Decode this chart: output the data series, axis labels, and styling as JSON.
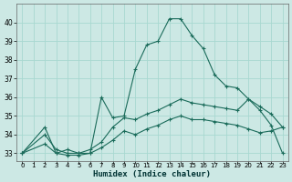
{
  "xlabel": "Humidex (Indice chaleur)",
  "bg_color": "#cce8e4",
  "grid_color": "#a8d8d0",
  "line_color": "#1a6b5a",
  "xlim": [
    -0.5,
    23.5
  ],
  "ylim": [
    32.6,
    41.0
  ],
  "xticks": [
    0,
    1,
    2,
    3,
    4,
    5,
    6,
    7,
    8,
    9,
    10,
    11,
    12,
    13,
    14,
    15,
    16,
    17,
    18,
    19,
    20,
    21,
    22,
    23
  ],
  "yticks": [
    33,
    34,
    35,
    36,
    37,
    38,
    39,
    40
  ],
  "series": [
    {
      "x": [
        0,
        2,
        3,
        4,
        5,
        6,
        7,
        8,
        9,
        10,
        11,
        12,
        13,
        14,
        15,
        16,
        17,
        18,
        19,
        20,
        21,
        22,
        23
      ],
      "y": [
        33.0,
        34.4,
        33.0,
        33.2,
        33.0,
        33.0,
        36.0,
        34.9,
        35.0,
        37.5,
        38.8,
        39.0,
        40.2,
        40.2,
        39.3,
        38.6,
        37.2,
        36.6,
        36.5,
        35.9,
        35.3,
        34.5,
        33.0
      ]
    },
    {
      "x": [
        0,
        2,
        3,
        4,
        5,
        6,
        7,
        8,
        9,
        10,
        11,
        12,
        13,
        14,
        15,
        16,
        17,
        18,
        19,
        20,
        21,
        22,
        23
      ],
      "y": [
        33.0,
        34.0,
        33.2,
        33.0,
        33.0,
        33.2,
        33.6,
        34.4,
        34.9,
        34.8,
        35.1,
        35.3,
        35.6,
        35.9,
        35.7,
        35.6,
        35.5,
        35.4,
        35.3,
        35.9,
        35.5,
        35.1,
        34.4
      ]
    },
    {
      "x": [
        0,
        2,
        3,
        4,
        5,
        6,
        7,
        8,
        9,
        10,
        11,
        12,
        13,
        14,
        15,
        16,
        17,
        18,
        19,
        20,
        21,
        22,
        23
      ],
      "y": [
        33.0,
        33.5,
        33.0,
        32.9,
        32.9,
        33.0,
        33.3,
        33.7,
        34.2,
        34.0,
        34.3,
        34.5,
        34.8,
        35.0,
        34.8,
        34.8,
        34.7,
        34.6,
        34.5,
        34.3,
        34.1,
        34.2,
        34.4
      ]
    }
  ]
}
